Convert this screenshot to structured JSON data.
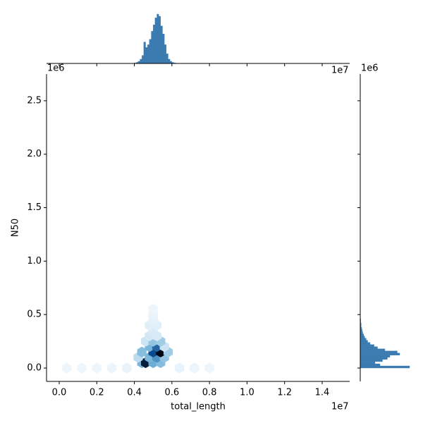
{
  "chart_data": {
    "type": "hexbin",
    "xlabel": "total_length",
    "ylabel": "N50",
    "x_offset": "1e7",
    "y_offset": "1e6",
    "xlim": [
      -675000,
      15465000
    ],
    "ylim": [
      -125000,
      2750000
    ],
    "xticks": [
      {
        "value": 0,
        "label": "0.0"
      },
      {
        "value": 2000000,
        "label": "0.2"
      },
      {
        "value": 4000000,
        "label": "0.4"
      },
      {
        "value": 6000000,
        "label": "0.6"
      },
      {
        "value": 8000000,
        "label": "0.8"
      },
      {
        "value": 10000000,
        "label": "1.0"
      },
      {
        "value": 12000000,
        "label": "1.2"
      },
      {
        "value": 14000000,
        "label": "1.4"
      }
    ],
    "yticks": [
      {
        "value": 0,
        "label": "0.0"
      },
      {
        "value": 500000,
        "label": "0.5"
      },
      {
        "value": 1000000,
        "label": "1.0"
      },
      {
        "value": 1500000,
        "label": "1.5"
      },
      {
        "value": 2000000,
        "label": "2.0"
      },
      {
        "value": 2500000,
        "label": "2.5"
      }
    ],
    "color": "#3b7bb0",
    "x": [
      400000,
      1200000,
      2000000,
      2800000,
      3600000,
      6400000,
      7200000,
      8000000,
      4400000,
      4600000,
      5000000,
      5400000,
      4200000,
      4800000,
      5200000,
      5600000,
      4400000,
      5000000,
      5400000,
      5800000,
      4800000,
      5200000,
      5600000,
      4600000,
      5000000,
      5400000,
      4800000,
      5200000,
      5000000,
      4800000,
      5200000,
      5000000,
      5000000,
      5000000
    ],
    "y": [
      0,
      0,
      0,
      0,
      0,
      0,
      0,
      0,
      50000,
      50000,
      50000,
      50000,
      100000,
      100000,
      100000,
      100000,
      150000,
      150000,
      150000,
      150000,
      200000,
      200000,
      200000,
      250000,
      250000,
      250000,
      300000,
      300000,
      350000,
      400000,
      400000,
      450000,
      500000,
      550000
    ],
    "counts": [
      2,
      2,
      2,
      3,
      4,
      4,
      3,
      2,
      45,
      95,
      50,
      40,
      20,
      45,
      60,
      35,
      40,
      85,
      100,
      30,
      45,
      75,
      15,
      15,
      35,
      30,
      12,
      10,
      10,
      7,
      7,
      5,
      4,
      2
    ],
    "top_hist": {
      "bins": [
        4000000,
        4100000,
        4200000,
        4300000,
        4400000,
        4500000,
        4600000,
        4700000,
        4800000,
        4900000,
        5000000,
        5100000,
        5200000,
        5300000,
        5400000,
        5500000,
        5600000,
        5700000,
        5800000,
        5900000,
        6000000,
        6100000,
        6200000
      ],
      "counts": [
        1,
        2,
        4,
        8,
        15,
        40,
        30,
        35,
        45,
        60,
        72,
        85,
        92,
        88,
        70,
        55,
        35,
        18,
        8,
        4,
        2,
        1
      ]
    },
    "right_hist": {
      "bins": [
        0,
        20000,
        40000,
        60000,
        80000,
        100000,
        120000,
        140000,
        160000,
        180000,
        200000,
        220000,
        240000,
        260000,
        280000,
        300000,
        320000,
        340000,
        360000,
        380000,
        400000,
        420000,
        440000,
        460000
      ],
      "counts": [
        100,
        40,
        30,
        45,
        55,
        60,
        80,
        75,
        50,
        35,
        28,
        20,
        15,
        12,
        9,
        7,
        5,
        4,
        3,
        2,
        2,
        1,
        1
      ]
    }
  }
}
